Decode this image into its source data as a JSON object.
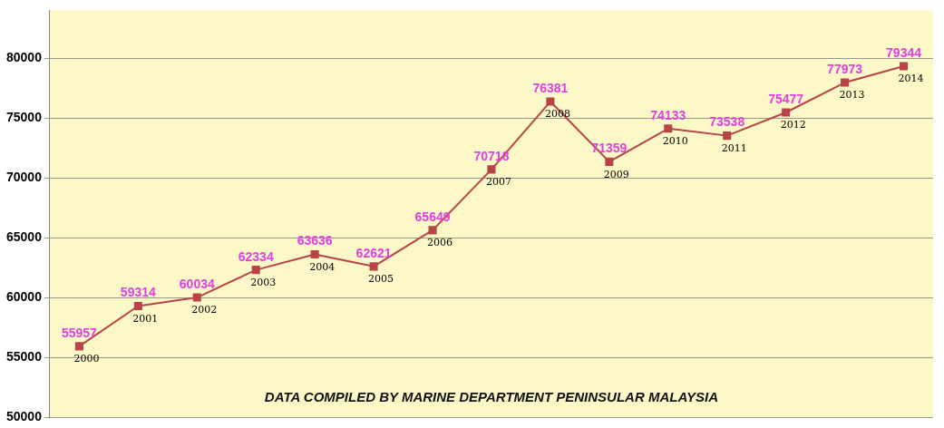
{
  "chart_data": {
    "type": "line",
    "categories": [
      "2000",
      "2001",
      "2002",
      "2003",
      "2004",
      "2005",
      "2006",
      "2007",
      "2008",
      "2009",
      "2010",
      "2011",
      "2012",
      "2013",
      "2014"
    ],
    "series": [
      {
        "color": "#b84448",
        "values": [
          55957,
          59314,
          60034,
          62334,
          63636,
          62621,
          65649,
          70718,
          76381,
          71359,
          74133,
          73538,
          75477,
          77973,
          79344
        ]
      }
    ],
    "ylim": [
      50000,
      84000
    ],
    "yticks": [
      50000,
      55000,
      60000,
      65000,
      70000,
      75000,
      80000
    ],
    "grid": "y",
    "legend": false,
    "marker": "square",
    "line_style": "solid",
    "data_labels": true,
    "tick_labels": "y",
    "annotations": [
      "DATA COMPILED BY MARINE DEPARTMENT PENINSULAR MALAYSIA"
    ]
  }
}
